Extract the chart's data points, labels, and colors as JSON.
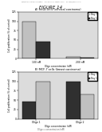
{
  "figure_title": "FIGURE 14",
  "panel_a": {
    "title": "A) HeLa cells (cervical carcinoma)",
    "xlabel": "Oligo concentration (nM)",
    "ylabel": "Cell proliferation (% of control)",
    "categories": [
      "100 nM",
      "200 nM"
    ],
    "day7": [
      100,
      5
    ],
    "day1": [
      45,
      3
    ],
    "ylim": [
      0,
      125
    ],
    "yticks": [
      0,
      25,
      50,
      75,
      100,
      125
    ],
    "color_day7": "#c0c0c0",
    "color_day1": "#303030"
  },
  "panel_b": {
    "title": "B) MCF-7 cells (breast carcinoma)",
    "xlabel": "Oligo concentration (nM)",
    "ylabel": "Cell proliferation (% of control)",
    "categories": [
      "Oligo 1",
      "Oligo 2"
    ],
    "day7": [
      45,
      100
    ],
    "day1": [
      100,
      65
    ],
    "ylim": [
      0,
      125
    ],
    "yticks": [
      0,
      25,
      50,
      75,
      100,
      125
    ],
    "color_day7": "#303030",
    "color_day1": "#c0c0c0"
  },
  "legend_labels": [
    "Day 7",
    "Day 1"
  ],
  "bg_color": "#ffffff",
  "header_text": "Patent Application Publication     May 18, 2006  Sheet 1 of 10     US 2006/0000000 A1",
  "bottom_text": "Oligo = concentration (nM)"
}
